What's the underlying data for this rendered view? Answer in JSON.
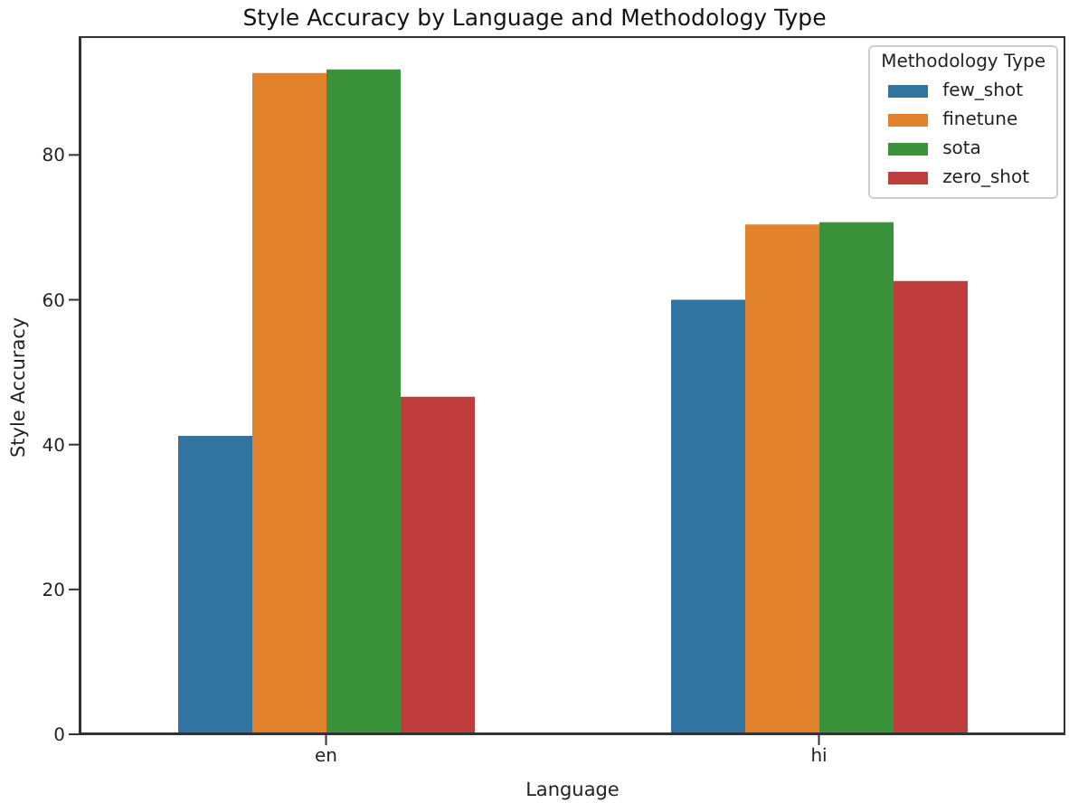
{
  "chart_data": {
    "type": "bar",
    "title": "Style Accuracy by Language and Methodology Type",
    "xlabel": "Language",
    "ylabel": "Style Accuracy",
    "legend_title": "Methodology Type",
    "categories": [
      "en",
      "hi"
    ],
    "series": [
      {
        "name": "few_shot",
        "color": "#3274a1",
        "values": [
          41.2,
          60.0
        ]
      },
      {
        "name": "finetune",
        "color": "#e1812c",
        "values": [
          91.3,
          70.4
        ]
      },
      {
        "name": "sota",
        "color": "#3a923a",
        "values": [
          91.8,
          70.7
        ]
      },
      {
        "name": "zero_shot",
        "color": "#c03d3e",
        "values": [
          46.6,
          62.6
        ]
      }
    ],
    "ylim": [
      0,
      96.4
    ],
    "yticks": [
      0,
      20,
      40,
      60,
      80
    ],
    "grid": false,
    "legend": "top right"
  }
}
